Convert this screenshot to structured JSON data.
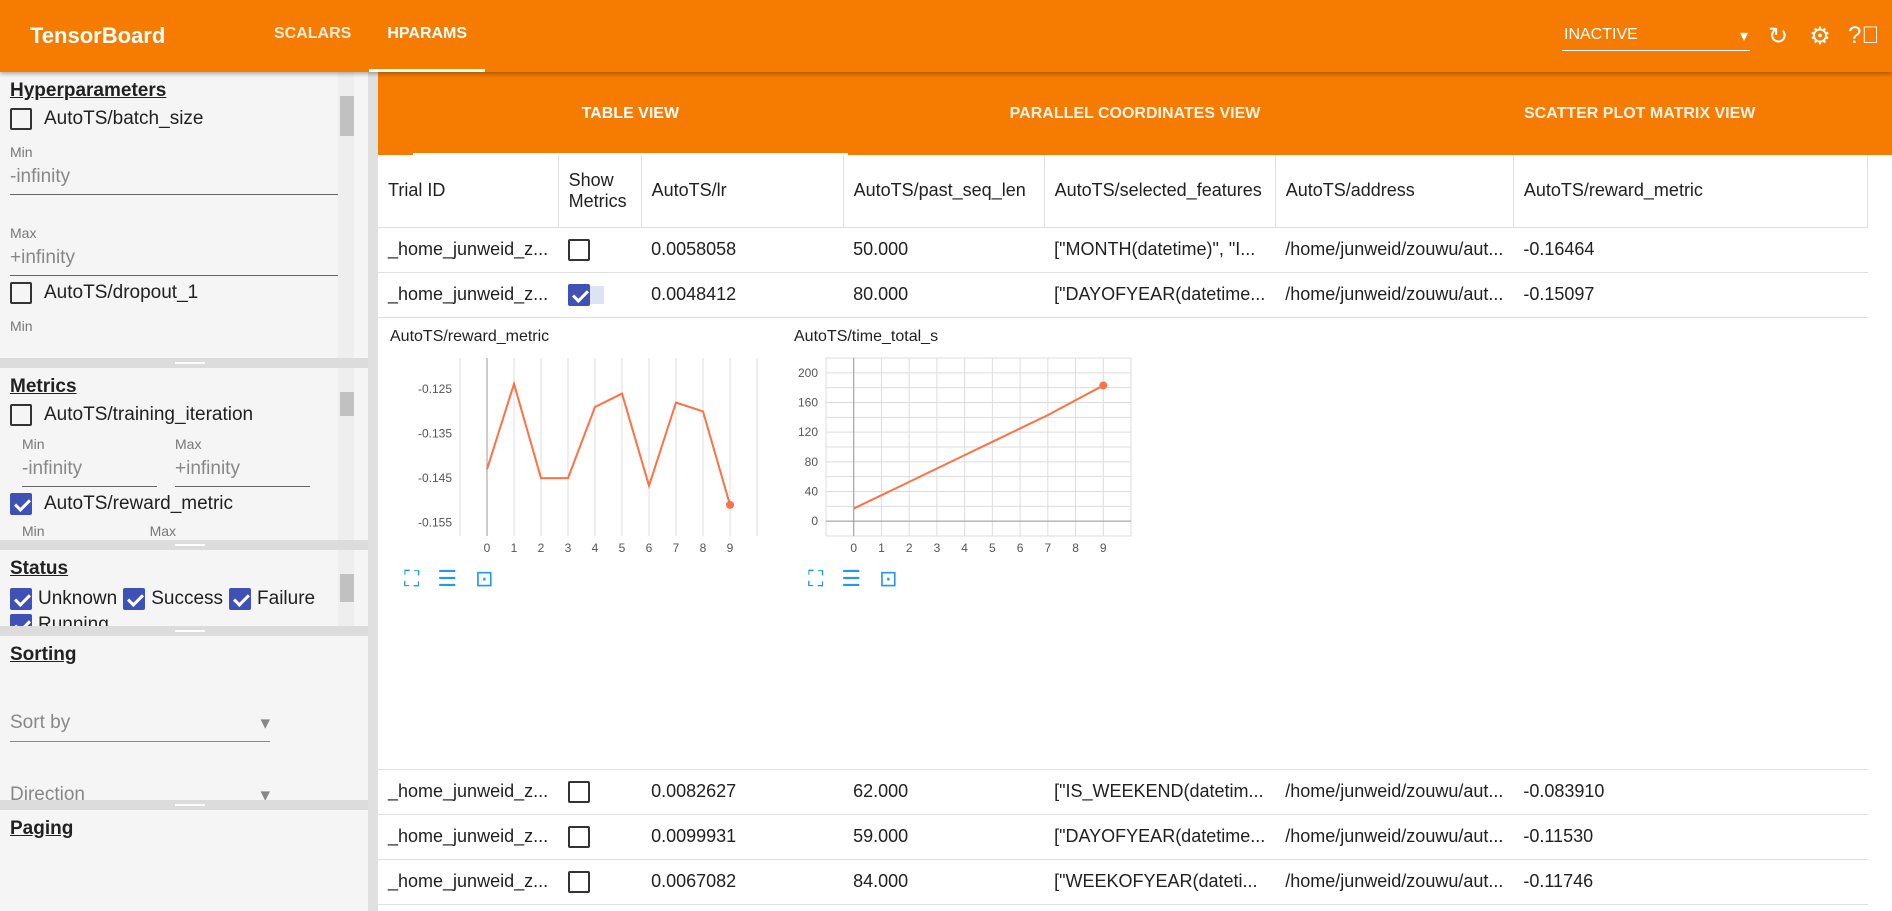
{
  "app": {
    "title": "TensorBoard",
    "tabs": [
      "SCALARS",
      "HPARAMS"
    ],
    "active_tab": "HPARAMS",
    "run_selector": "INACTIVE",
    "accent": "#f57c00"
  },
  "sidebar": {
    "hyperparameters": {
      "title": "Hyperparameters",
      "items": [
        {
          "label": "AutoTS/batch_size",
          "checked": false,
          "min_label": "Min",
          "min": "-infinity",
          "max_label": "Max",
          "max": "+infinity"
        },
        {
          "label": "AutoTS/dropout_1",
          "checked": false,
          "min_label": "Min"
        }
      ]
    },
    "metrics": {
      "title": "Metrics",
      "items": [
        {
          "label": "AutoTS/training_iteration",
          "checked": false,
          "min_label": "Min",
          "min": "-infinity",
          "max_label": "Max",
          "max": "+infinity"
        },
        {
          "label": "AutoTS/reward_metric",
          "checked": true,
          "min_label": "Min",
          "max_label": "Max"
        }
      ]
    },
    "status": {
      "title": "Status",
      "items": [
        {
          "label": "Unknown",
          "checked": true
        },
        {
          "label": "Success",
          "checked": true
        },
        {
          "label": "Failure",
          "checked": true
        },
        {
          "label": "Running",
          "checked": true
        }
      ]
    },
    "sorting": {
      "title": "Sorting",
      "sort_by": "Sort by",
      "direction": "Direction"
    },
    "paging": {
      "title": "Paging"
    }
  },
  "views": {
    "tabs": [
      "TABLE VIEW",
      "PARALLEL COORDINATES VIEW",
      "SCATTER PLOT MATRIX VIEW"
    ],
    "active": "TABLE VIEW"
  },
  "table": {
    "headers": [
      "Trial ID",
      "Show Metrics",
      "AutoTS/lr",
      "AutoTS/past_seq_len",
      "AutoTS/selected_features",
      "AutoTS/address",
      "AutoTS/reward_metric"
    ],
    "rows": [
      {
        "id": "_home_junweid_z...",
        "show": false,
        "lr": "0.0058058",
        "psl": "50.000",
        "feat": "[\"MONTH(datetime)\", \"I...",
        "addr": "/home/junweid/zouwu/aut...",
        "reward": "-0.16464"
      },
      {
        "id": "_home_junweid_z...",
        "show": true,
        "lr": "0.0048412",
        "psl": "80.000",
        "feat": "[\"DAYOFYEAR(datetime...",
        "addr": "/home/junweid/zouwu/aut...",
        "reward": "-0.15097"
      },
      {
        "id": "_home_junweid_z...",
        "show": false,
        "lr": "0.0082627",
        "psl": "62.000",
        "feat": "[\"IS_WEEKEND(datetim...",
        "addr": "/home/junweid/zouwu/aut...",
        "reward": "-0.083910"
      },
      {
        "id": "_home_junweid_z...",
        "show": false,
        "lr": "0.0099931",
        "psl": "59.000",
        "feat": "[\"DAYOFYEAR(datetime...",
        "addr": "/home/junweid/zouwu/aut...",
        "reward": "-0.11530"
      },
      {
        "id": "_home_junweid_z...",
        "show": false,
        "lr": "0.0067082",
        "psl": "84.000",
        "feat": "[\"WEEKOFYEAR(dateti...",
        "addr": "/home/junweid/zouwu/aut...",
        "reward": "-0.11746"
      }
    ]
  },
  "chart_data": [
    {
      "type": "line",
      "title": "AutoTS/reward_metric",
      "x": [
        0,
        1,
        2,
        3,
        4,
        5,
        6,
        7,
        8,
        9
      ],
      "y": [
        -0.143,
        -0.1238,
        -0.145,
        -0.145,
        -0.129,
        -0.126,
        -0.1467,
        -0.128,
        -0.13,
        -0.151
      ],
      "xticks": [
        0,
        1,
        2,
        3,
        4,
        5,
        6,
        7,
        8,
        9
      ],
      "yticks": [
        -0.125,
        -0.135,
        -0.145,
        -0.155
      ],
      "ylim": [
        -0.158,
        -0.118
      ],
      "xlim": [
        -1,
        10
      ],
      "grid": true,
      "color": "#ff7043"
    },
    {
      "type": "line",
      "title": "AutoTS/time_total_s",
      "x": [
        0,
        1,
        2,
        3,
        4,
        5,
        6,
        7,
        8,
        9
      ],
      "y": [
        17,
        35,
        53,
        71,
        89,
        107,
        125,
        143,
        163,
        183
      ],
      "xticks": [
        0,
        1,
        2,
        3,
        4,
        5,
        6,
        7,
        8,
        9
      ],
      "yticks": [
        0,
        40,
        80,
        120,
        160,
        200
      ],
      "ylim": [
        -20,
        220
      ],
      "xlim": [
        -1,
        10
      ],
      "grid": true,
      "color": "#ff7043"
    }
  ]
}
